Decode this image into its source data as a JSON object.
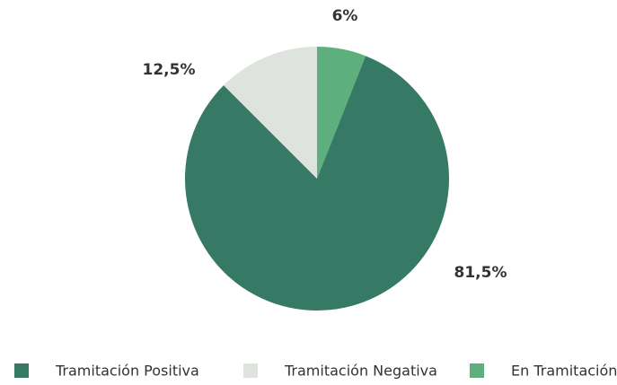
{
  "chart_data": {
    "type": "pie",
    "categories": [
      "Tramitación Positiva",
      "Tramitación Negativa",
      "En Tramitación"
    ],
    "values": [
      81.5,
      12.5,
      6
    ],
    "value_labels": [
      "81,5%",
      "12,5%",
      "6%"
    ],
    "colors": [
      "#367a65",
      "#dfe3de",
      "#5db07e"
    ],
    "legend": "bottom"
  }
}
